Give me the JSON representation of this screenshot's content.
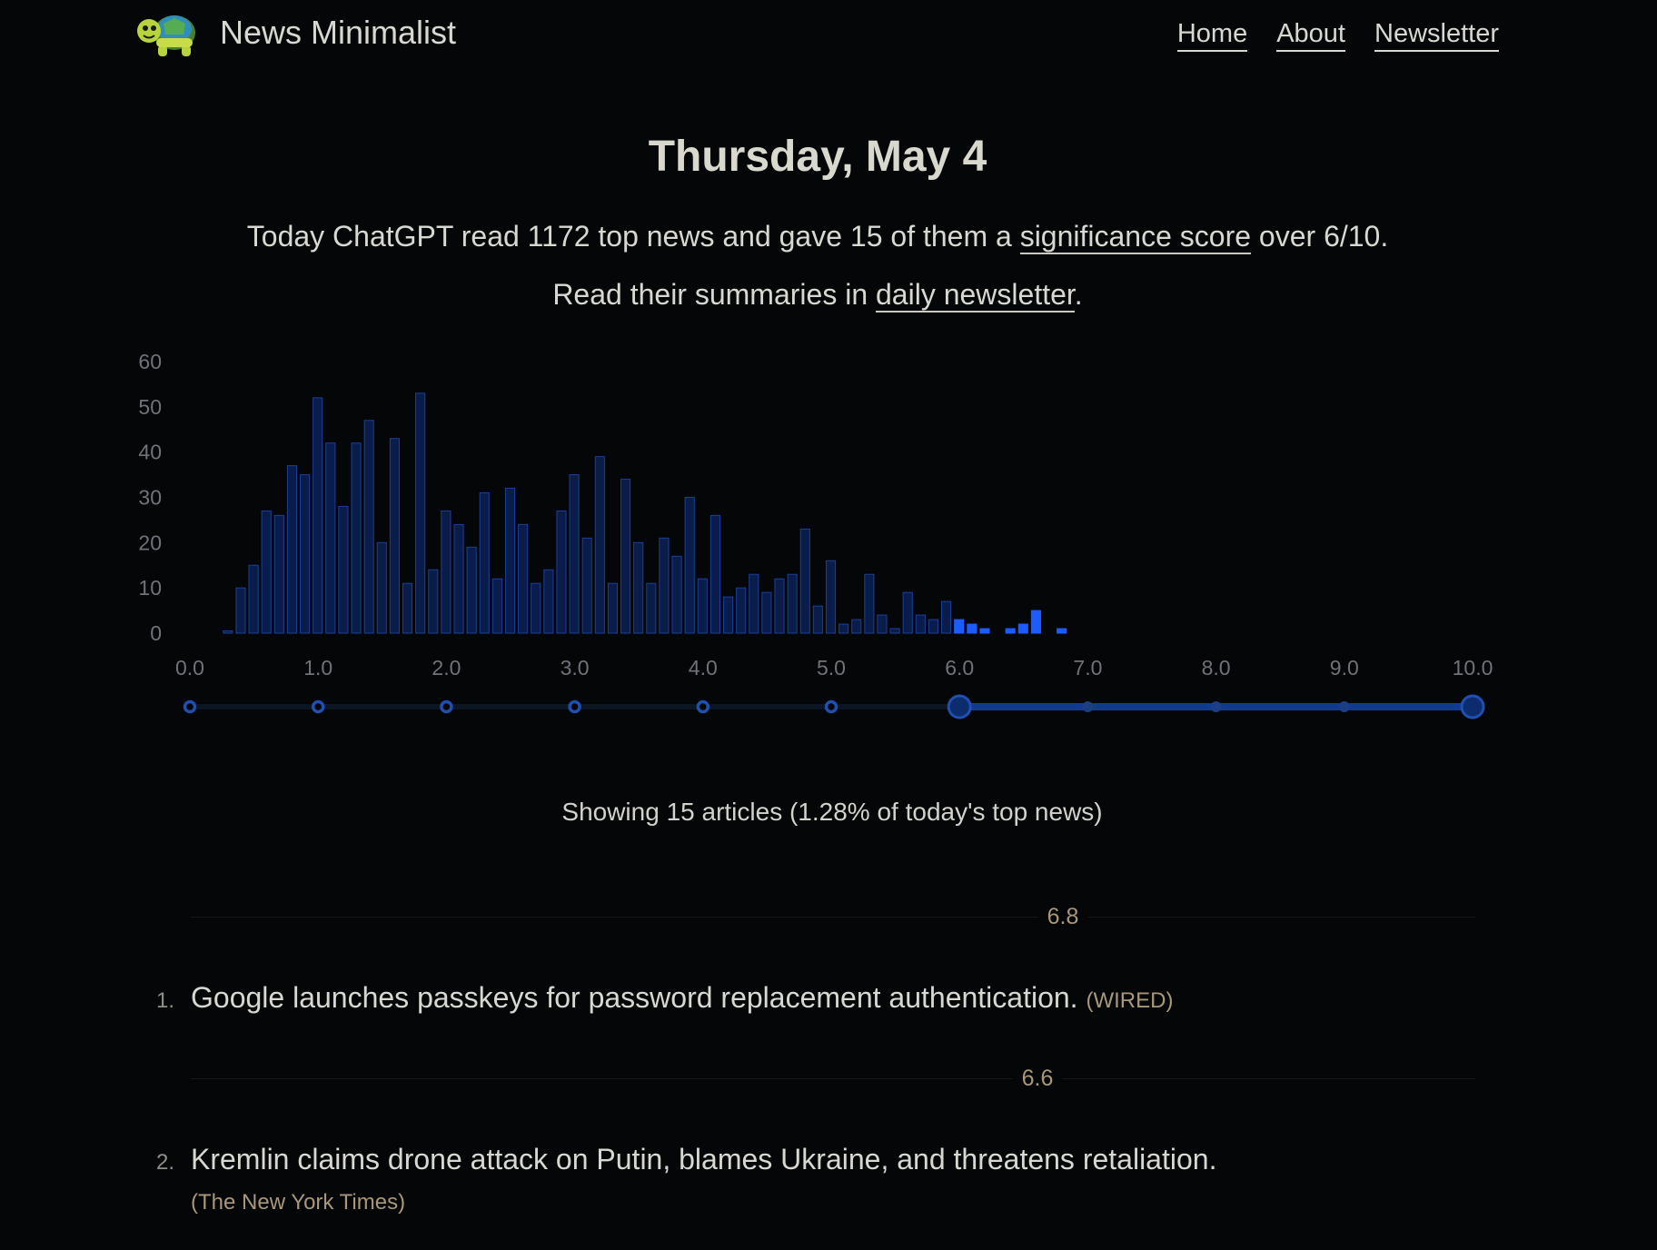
{
  "header": {
    "site_title": "News Minimalist",
    "logo_icon": "turtle-icon",
    "nav": [
      "Home",
      "About",
      "Newsletter"
    ]
  },
  "page": {
    "title": "Thursday, May 4",
    "intro_before": "Today ChatGPT read 1172 top news and gave 15 of them a ",
    "intro_link": "significance score",
    "intro_after": " over 6/10.",
    "intro2_before": "Read their summaries in ",
    "intro2_link": "daily newsletter",
    "intro2_after": ".",
    "showing": "Showing 15 articles (1.28% of today's top news)"
  },
  "colors": {
    "background": "#050608",
    "bar_unselected": "#0f2b6e",
    "bar_selected": "#1a5cff",
    "slider_active": "#123a8f",
    "score_text": "#a8977b"
  },
  "chart_data": {
    "type": "bar",
    "x_label_ticks": [
      "0.0",
      "1.0",
      "2.0",
      "3.0",
      "4.0",
      "5.0",
      "6.0",
      "7.0",
      "8.0",
      "9.0",
      "10.0"
    ],
    "y_ticks": [
      "0",
      "10",
      "20",
      "30",
      "40",
      "50",
      "60"
    ],
    "xlim": [
      0,
      10
    ],
    "ylim": [
      0,
      60
    ],
    "bin_width": 0.1,
    "x": [
      0.3,
      0.4,
      0.5,
      0.6,
      0.7,
      0.8,
      0.9,
      1.0,
      1.1,
      1.2,
      1.3,
      1.4,
      1.5,
      1.6,
      1.7,
      1.8,
      1.9,
      2.0,
      2.1,
      2.2,
      2.3,
      2.4,
      2.5,
      2.6,
      2.7,
      2.8,
      2.9,
      3.0,
      3.1,
      3.2,
      3.3,
      3.4,
      3.5,
      3.6,
      3.7,
      3.8,
      3.9,
      4.0,
      4.1,
      4.2,
      4.3,
      4.4,
      4.5,
      4.6,
      4.7,
      4.8,
      4.9,
      5.0,
      5.1,
      5.2,
      5.3,
      5.4,
      5.5,
      5.6,
      5.7,
      5.8,
      5.9,
      6.0,
      6.1,
      6.2,
      6.3,
      6.4,
      6.5,
      6.6,
      6.7,
      6.8
    ],
    "values": [
      0.5,
      10,
      15,
      27,
      26,
      37,
      35,
      52,
      42,
      28,
      42,
      47,
      20,
      43,
      11,
      53,
      14,
      27,
      24,
      19,
      31,
      12,
      32,
      24,
      11,
      14,
      27,
      35,
      21,
      39,
      11,
      34,
      20,
      11,
      21,
      17,
      30,
      12,
      26,
      8,
      10,
      13,
      9,
      12,
      13,
      23,
      6,
      16,
      2,
      3,
      13,
      4,
      1,
      9,
      4,
      3,
      7,
      3,
      2,
      1,
      0,
      1,
      2,
      5,
      0,
      1
    ],
    "selected_min": 6.0,
    "selected_max": 10.0,
    "slider_marks": [
      0,
      1,
      2,
      3,
      4,
      5,
      6,
      7,
      8,
      9,
      10
    ]
  },
  "articles": [
    {
      "score": "6.8",
      "rank": "1.",
      "title": "Google launches passkeys for password replacement authentication.",
      "source": "(WIRED)"
    },
    {
      "score": "6.6",
      "rank": "2.",
      "title": "Kremlin claims drone attack on Putin, blames Ukraine, and threatens retaliation.",
      "source": "(The New York Times)"
    }
  ]
}
